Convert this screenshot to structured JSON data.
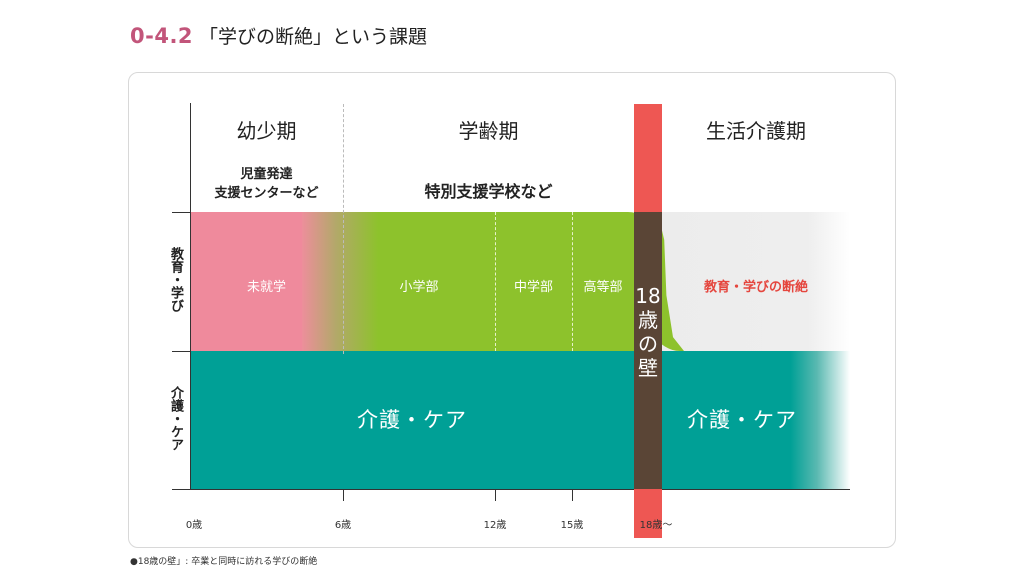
{
  "header": {
    "number": "0-4.2",
    "title": "「学びの断絶」という課題"
  },
  "periods": {
    "early_childhood": "幼少期",
    "school_age": "学齢期",
    "adult_life": "生活介護期"
  },
  "facilities": {
    "early_line1": "児童発達",
    "early_line2": "支援センターなど",
    "school": "特別支援学校など"
  },
  "row_labels": {
    "education": "教育・学び",
    "care": "介護・ケア"
  },
  "education_band": {
    "preschool": "未就学",
    "elementary": "小学部",
    "junior_high": "中学部",
    "high": "高等部",
    "gap": "教育・学びの断絶"
  },
  "care_band": {
    "before": "介護・ケア",
    "after": "介護・ケア"
  },
  "wall": {
    "line1": "18",
    "line2": "歳",
    "line3": "の",
    "line4": "壁"
  },
  "axis_ticks": {
    "t0": "0歳",
    "t6": "6歳",
    "t12": "12歳",
    "t15": "15歳",
    "t18": "18歳～"
  },
  "colors": {
    "accent": "#c2557a",
    "pink": "#ef8a9c",
    "green": "#8dc22c",
    "teal": "#00a096",
    "gray_band": "#eeeeee",
    "wall_red": "#ee5753",
    "wall_dark": "#5a4536",
    "gap_red": "#e5463e"
  },
  "footnote": "●18歳の壁」: 卒業と同時に訪れる学びの断絶"
}
